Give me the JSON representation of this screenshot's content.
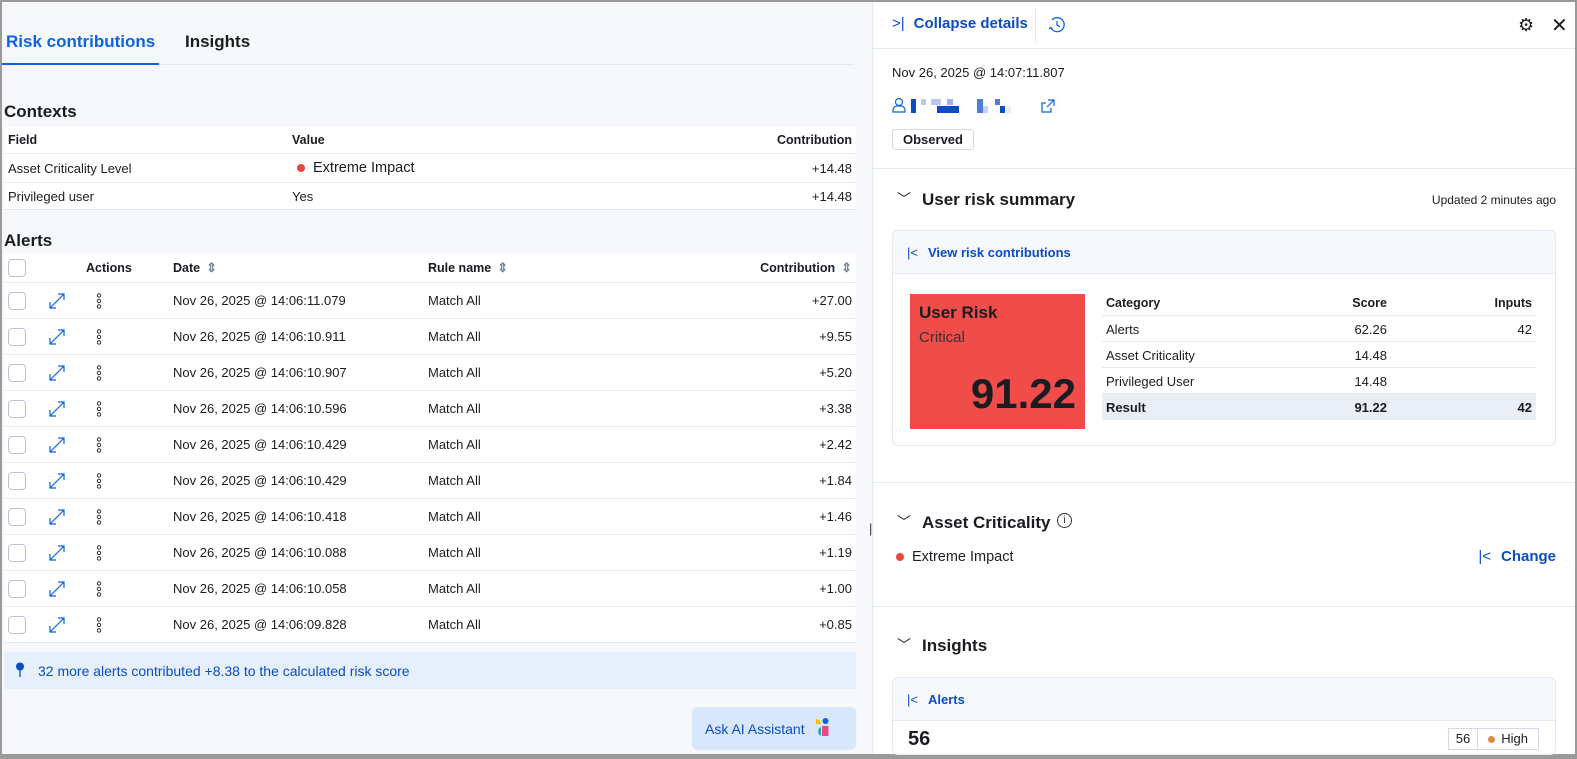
{
  "tabs": [
    {
      "label": "Risk contributions",
      "active": true
    },
    {
      "label": "Insights",
      "active": false
    }
  ],
  "contexts": {
    "title": "Contexts",
    "headers": [
      "Field",
      "Value",
      "Contribution"
    ],
    "rows": [
      {
        "field": "Asset Criticality Level",
        "value": "Extreme Impact",
        "contribution": "+14.48",
        "dot": true
      },
      {
        "field": "Privileged user",
        "value": "Yes",
        "contribution": "+14.48",
        "dot": false
      }
    ]
  },
  "alerts": {
    "title": "Alerts",
    "headers": {
      "actions": "Actions",
      "date": "Date",
      "rule": "Rule name",
      "contribution": "Contribution"
    },
    "rows": [
      {
        "date": "Nov 26, 2025 @ 14:06:11.079",
        "rule": "Match All",
        "contribution": "+27.00"
      },
      {
        "date": "Nov 26, 2025 @ 14:06:10.911",
        "rule": "Match All",
        "contribution": "+9.55"
      },
      {
        "date": "Nov 26, 2025 @ 14:06:10.907",
        "rule": "Match All",
        "contribution": "+5.20"
      },
      {
        "date": "Nov 26, 2025 @ 14:06:10.596",
        "rule": "Match All",
        "contribution": "+3.38"
      },
      {
        "date": "Nov 26, 2025 @ 14:06:10.429",
        "rule": "Match All",
        "contribution": "+2.42"
      },
      {
        "date": "Nov 26, 2025 @ 14:06:10.429",
        "rule": "Match All",
        "contribution": "+1.84"
      },
      {
        "date": "Nov 26, 2025 @ 14:06:10.418",
        "rule": "Match All",
        "contribution": "+1.46"
      },
      {
        "date": "Nov 26, 2025 @ 14:06:10.088",
        "rule": "Match All",
        "contribution": "+1.19"
      },
      {
        "date": "Nov 26, 2025 @ 14:06:10.058",
        "rule": "Match All",
        "contribution": "+1.00"
      },
      {
        "date": "Nov 26, 2025 @ 14:06:09.828",
        "rule": "Match All",
        "contribution": "+0.85"
      }
    ]
  },
  "callout": "32 more alerts contributed +8.38 to the calculated risk score",
  "ai_button": "Ask AI Assistant",
  "panel": {
    "collapse": "Collapse details",
    "timestamp": "Nov 26, 2025 @ 14:07:11.807",
    "badge": "Observed",
    "summary": {
      "title": "User risk summary",
      "updated": "Updated 2 minutes ago",
      "link": "View risk contributions",
      "risk_label": "User Risk",
      "risk_level": "Critical",
      "risk_score": "91.22",
      "risk_color": "#ef4c4a",
      "headers": [
        "Category",
        "Score",
        "Inputs"
      ],
      "rows": [
        {
          "c": "Alerts",
          "s": "62.26",
          "i": "42"
        },
        {
          "c": "Asset Criticality",
          "s": "14.48",
          "i": ""
        },
        {
          "c": "Privileged User",
          "s": "14.48",
          "i": ""
        }
      ],
      "result": {
        "c": "Result",
        "s": "91.22",
        "i": "42"
      }
    },
    "asset": {
      "title": "Asset Criticality",
      "value": "Extreme Impact",
      "change": "Change"
    },
    "insights": {
      "title": "Insights",
      "link": "Alerts",
      "count": "56",
      "badge_count": "56",
      "badge_level": "High"
    }
  }
}
